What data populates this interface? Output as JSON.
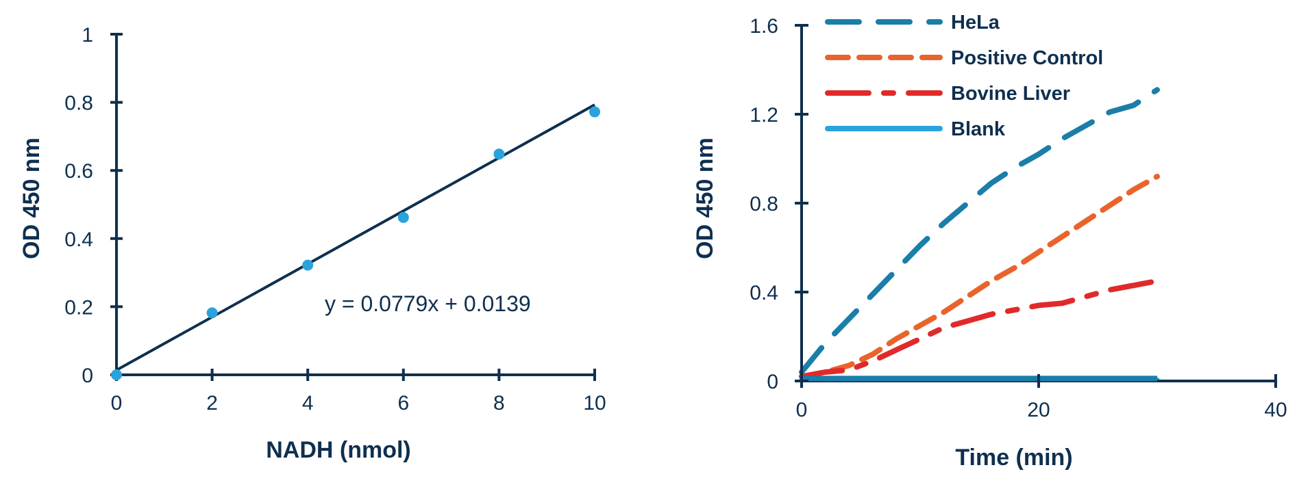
{
  "chart_data": [
    {
      "type": "scatter",
      "xlabel": "NADH (nmol)",
      "ylabel": "OD 450 nm",
      "xlim": [
        0,
        10
      ],
      "ylim": [
        0,
        1
      ],
      "x_ticks": [
        0,
        2,
        4,
        6,
        8,
        10
      ],
      "y_ticks": [
        0,
        0.2,
        0.4,
        0.6,
        0.8,
        1
      ],
      "x_tick_labels": [
        "0",
        "2",
        "4",
        "6",
        "8",
        "10"
      ],
      "y_tick_labels": [
        "0",
        "0.2",
        "0.4",
        "0.6",
        "0.8",
        "1"
      ],
      "points": {
        "x": [
          0,
          2,
          4,
          6,
          8,
          10
        ],
        "y": [
          0.0,
          0.182,
          0.322,
          0.462,
          0.648,
          0.772
        ]
      },
      "trendline": {
        "slope": 0.0779,
        "intercept": 0.0139
      },
      "annotation": "y = 0.0779x + 0.0139",
      "grid": false,
      "colors": {
        "axis": "#0f2f4f",
        "points": "#2aa3dc",
        "trendline": "#0f2f4f"
      }
    },
    {
      "type": "line",
      "xlabel": "Time (min)",
      "ylabel": "OD 450 nm",
      "xlim": [
        0,
        40
      ],
      "ylim": [
        0,
        1.6
      ],
      "x_ticks": [
        0,
        20,
        40
      ],
      "y_ticks": [
        0,
        0.4,
        0.8,
        1.2,
        1.6
      ],
      "x_tick_labels": [
        "0",
        "20",
        "40"
      ],
      "y_tick_labels": [
        "0",
        "0.4",
        "0.8",
        "1.2",
        "1.6"
      ],
      "legend_position": "top-left",
      "grid": false,
      "series": [
        {
          "name": "HeLa",
          "color": "#1a7ea8",
          "style": "long-dash",
          "x": [
            0,
            2,
            4,
            6,
            8,
            10,
            12,
            14,
            16,
            18,
            20,
            22,
            24,
            26,
            28,
            30
          ],
          "y": [
            0.04,
            0.17,
            0.28,
            0.39,
            0.5,
            0.61,
            0.71,
            0.8,
            0.89,
            0.96,
            1.02,
            1.09,
            1.15,
            1.21,
            1.24,
            1.31
          ]
        },
        {
          "name": "Positive Control",
          "color": "#e8642c",
          "style": "dash",
          "x": [
            0,
            2,
            4,
            6,
            8,
            10,
            12,
            14,
            16,
            18,
            20,
            22,
            24,
            26,
            28,
            30
          ],
          "y": [
            0.02,
            0.04,
            0.07,
            0.12,
            0.19,
            0.25,
            0.31,
            0.38,
            0.45,
            0.51,
            0.58,
            0.65,
            0.72,
            0.79,
            0.86,
            0.92
          ]
        },
        {
          "name": "Bovine Liver",
          "color": "#e02a2a",
          "style": "dash-dot",
          "x": [
            0,
            2,
            4,
            6,
            8,
            10,
            12,
            14,
            16,
            18,
            20,
            22,
            24,
            26,
            28,
            30
          ],
          "y": [
            0.02,
            0.04,
            0.05,
            0.09,
            0.14,
            0.19,
            0.24,
            0.27,
            0.3,
            0.32,
            0.34,
            0.35,
            0.38,
            0.41,
            0.43,
            0.45
          ]
        },
        {
          "name": "Blank",
          "color": "#2aa3dc",
          "style": "solid",
          "x": [
            0,
            30
          ],
          "y": [
            0.005,
            0.005
          ]
        }
      ],
      "colors": {
        "axis": "#0f2f4f"
      }
    }
  ]
}
